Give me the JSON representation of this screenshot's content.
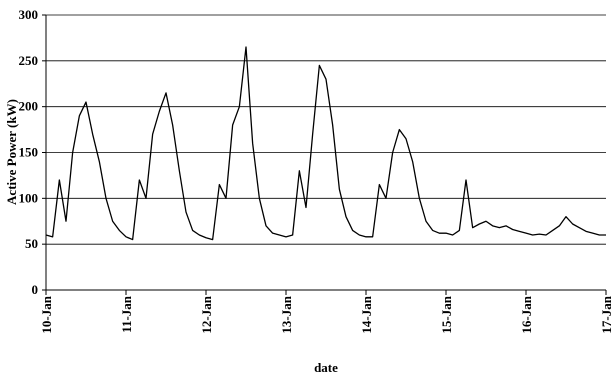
{
  "chart_data": {
    "type": "line",
    "x": [
      10,
      10.083,
      10.167,
      10.25,
      10.333,
      10.417,
      10.5,
      10.583,
      10.667,
      10.75,
      10.833,
      10.917,
      11,
      11.083,
      11.167,
      11.25,
      11.333,
      11.417,
      11.5,
      11.583,
      11.667,
      11.75,
      11.833,
      11.917,
      12,
      12.083,
      12.167,
      12.25,
      12.333,
      12.417,
      12.5,
      12.583,
      12.667,
      12.75,
      12.833,
      12.917,
      13,
      13.083,
      13.167,
      13.25,
      13.333,
      13.417,
      13.5,
      13.583,
      13.667,
      13.75,
      13.833,
      13.917,
      14,
      14.083,
      14.167,
      14.25,
      14.333,
      14.417,
      14.5,
      14.583,
      14.667,
      14.75,
      14.833,
      14.917,
      15,
      15.083,
      15.167,
      15.25,
      15.333,
      15.417,
      15.5,
      15.583,
      15.667,
      15.75,
      15.833,
      15.917,
      16,
      16.083,
      16.167,
      16.25,
      16.333,
      16.417,
      16.5,
      16.583,
      16.667,
      16.75,
      16.833,
      16.917,
      17
    ],
    "series": [
      {
        "color": "#000000",
        "values": [
          60,
          58,
          120,
          75,
          150,
          190,
          205,
          170,
          140,
          100,
          75,
          65,
          58,
          55,
          120,
          100,
          170,
          195,
          215,
          180,
          130,
          85,
          65,
          60,
          57,
          55,
          115,
          100,
          180,
          200,
          265,
          160,
          100,
          70,
          62,
          60,
          58,
          60,
          130,
          90,
          170,
          245,
          230,
          180,
          110,
          80,
          65,
          60,
          58,
          58,
          115,
          100,
          150,
          175,
          165,
          140,
          100,
          75,
          65,
          62,
          62,
          60,
          65,
          120,
          68,
          72,
          75,
          70,
          68,
          70,
          66,
          64,
          62,
          60,
          61,
          60,
          65,
          70,
          80,
          72,
          68,
          64,
          62,
          60,
          60
        ]
      }
    ],
    "xlabel": "date",
    "ylabel": "Active Power (kW)",
    "xlim": [
      10,
      17
    ],
    "xticks": [
      {
        "value": 10,
        "label": "10-Jan"
      },
      {
        "value": 11,
        "label": "11-Jan"
      },
      {
        "value": 12,
        "label": "12-Jan"
      },
      {
        "value": 13,
        "label": "13-Jan"
      },
      {
        "value": 14,
        "label": "14-Jan"
      },
      {
        "value": 15,
        "label": "15-Jan"
      },
      {
        "value": 16,
        "label": "16-Jan"
      },
      {
        "value": 17,
        "label": "17-Jan"
      }
    ],
    "ylim": [
      0,
      300
    ],
    "yticks": [
      0,
      50,
      100,
      150,
      200,
      250,
      300
    ],
    "grid": true
  }
}
